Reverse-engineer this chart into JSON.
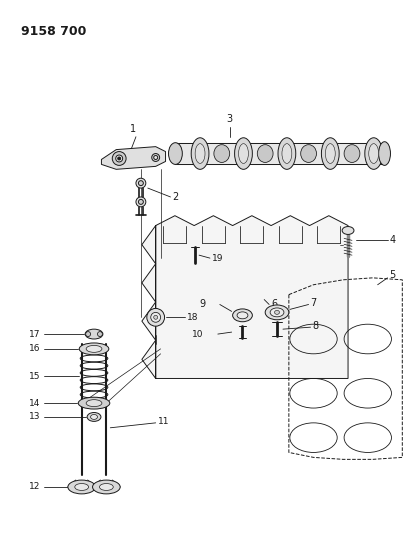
{
  "title": "9158 700",
  "bg_color": "#ffffff",
  "line_color": "#1a1a1a",
  "fig_width": 4.11,
  "fig_height": 5.33,
  "dpi": 100
}
